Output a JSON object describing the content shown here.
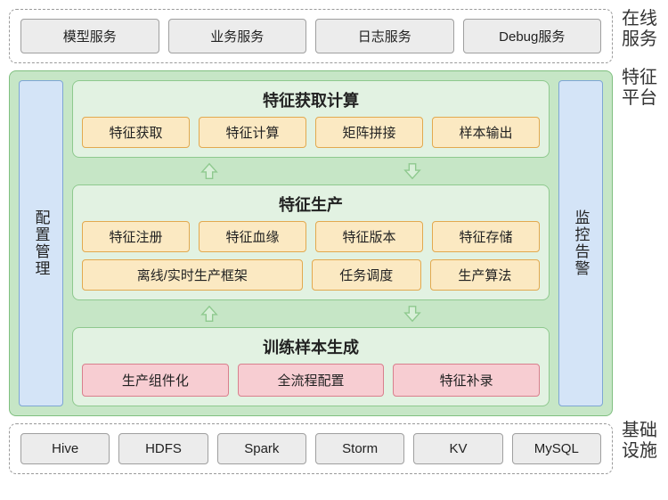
{
  "online_services": {
    "label": "在线\n服务",
    "items": [
      "模型服务",
      "业务服务",
      "日志服务",
      "Debug服务"
    ]
  },
  "feature_platform": {
    "label": "特征\n平台",
    "left_pillar": "配置管理",
    "right_pillar": "监控告警",
    "panels": [
      {
        "title": "特征获取计算",
        "rows": [
          {
            "style": "yellow",
            "cells": [
              {
                "t": "特征获取"
              },
              {
                "t": "特征计算"
              },
              {
                "t": "矩阵拼接"
              },
              {
                "t": "样本输出"
              }
            ]
          }
        ]
      },
      {
        "title": "特征生产",
        "rows": [
          {
            "style": "yellow",
            "cells": [
              {
                "t": "特征注册"
              },
              {
                "t": "特征血缘"
              },
              {
                "t": "特征版本"
              },
              {
                "t": "特征存储"
              }
            ]
          },
          {
            "style": "yellow",
            "cells": [
              {
                "t": "离线/实时生产框架",
                "w": 2
              },
              {
                "t": "任务调度"
              },
              {
                "t": "生产算法"
              }
            ]
          }
        ]
      },
      {
        "title": "训练样本生成",
        "rows": [
          {
            "style": "pink",
            "cells": [
              {
                "t": "生产组件化"
              },
              {
                "t": "全流程配置"
              },
              {
                "t": "特征补录"
              }
            ]
          }
        ]
      }
    ],
    "arrow_color": "#8ec98e",
    "arrow_fill": "#d8efd8"
  },
  "infra": {
    "label": "基础\n设施",
    "items": [
      "Hive",
      "HDFS",
      "Spark",
      "Storm",
      "KV",
      "MySQL"
    ]
  }
}
